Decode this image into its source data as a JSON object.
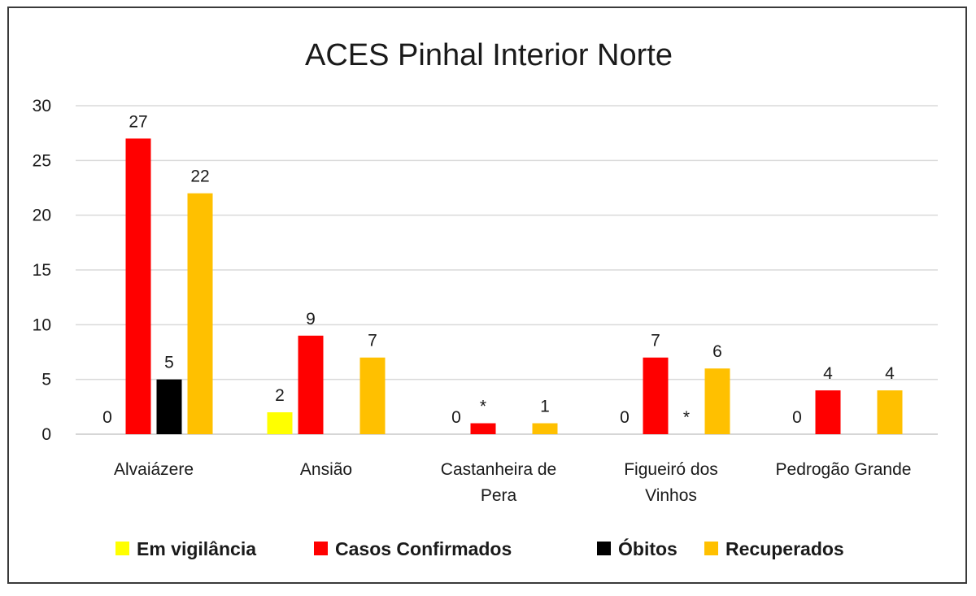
{
  "chart_data": {
    "type": "bar",
    "title": "ACES Pinhal Interior Norte",
    "xlabel": "",
    "ylabel": "",
    "ylim": [
      0,
      30
    ],
    "yticks": [
      0,
      5,
      10,
      15,
      20,
      25,
      30
    ],
    "grid": true,
    "legend_position": "bottom",
    "categories": [
      [
        "Alvaiázere"
      ],
      [
        "Ansião"
      ],
      [
        "Castanheira de",
        "Pera"
      ],
      [
        "Figueiró dos",
        "Vinhos"
      ],
      [
        "Pedrogão Grande"
      ]
    ],
    "series": [
      {
        "name": "Em vigilância",
        "color": "#FFFF00",
        "values": [
          0,
          2,
          null,
          0,
          0
        ],
        "labels": [
          "0",
          "2",
          "",
          "0",
          "0"
        ]
      },
      {
        "name": "Casos Confirmados",
        "color": "#FF0000",
        "values": [
          27,
          9,
          1,
          7,
          4
        ],
        "labels": [
          "27",
          "9",
          "*",
          "7",
          "4"
        ]
      },
      {
        "name": "Óbitos",
        "color": "#000000",
        "values": [
          5,
          null,
          null,
          0,
          null
        ],
        "labels": [
          "5",
          "",
          "",
          "*",
          ""
        ]
      },
      {
        "name": "Recuperados",
        "color": "#FFC000",
        "values": [
          22,
          7,
          1,
          6,
          4
        ],
        "labels": [
          "22",
          "7",
          "1",
          "6",
          "4"
        ]
      }
    ],
    "extra_labels": [
      {
        "category": 2,
        "series": 0,
        "text": "0"
      }
    ]
  }
}
